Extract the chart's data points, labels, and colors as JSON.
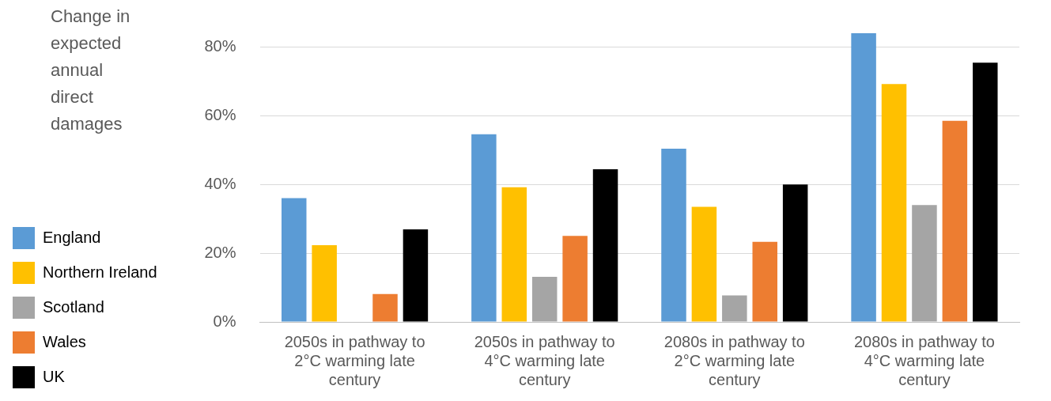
{
  "chart_data": {
    "type": "bar",
    "ylabel": "Change in expected annual direct damages",
    "categories": [
      "2050s in pathway to 2°C warming late century",
      "2050s in pathway to 4°C warming late century",
      "2080s in pathway to 2°C warming late century",
      "2080s in pathway to 4°C warming late century"
    ],
    "series": [
      {
        "name": "England",
        "color": "#5b9bd5",
        "values": [
          36,
          54.6,
          50.4,
          84
        ]
      },
      {
        "name": "Northern Ireland",
        "color": "#ffc000",
        "values": [
          22.3,
          39.2,
          33.5,
          69.2
        ]
      },
      {
        "name": "Scotland",
        "color": "#a5a5a5",
        "values": [
          0,
          13.1,
          7.7,
          34
        ]
      },
      {
        "name": "Wales",
        "color": "#ed7d31",
        "values": [
          8.1,
          25,
          23.3,
          58.5
        ]
      },
      {
        "name": "UK",
        "color": "#000000",
        "values": [
          26.9,
          44.4,
          40,
          75.4
        ]
      }
    ],
    "ylim": [
      0,
      84
    ],
    "yticks": [
      {
        "value": 0,
        "label": "0%"
      },
      {
        "value": 20,
        "label": "20%"
      },
      {
        "value": 40,
        "label": "40%"
      },
      {
        "value": 60,
        "label": "60%"
      },
      {
        "value": 80,
        "label": "80%"
      }
    ],
    "grid": "y",
    "legend": "left"
  }
}
